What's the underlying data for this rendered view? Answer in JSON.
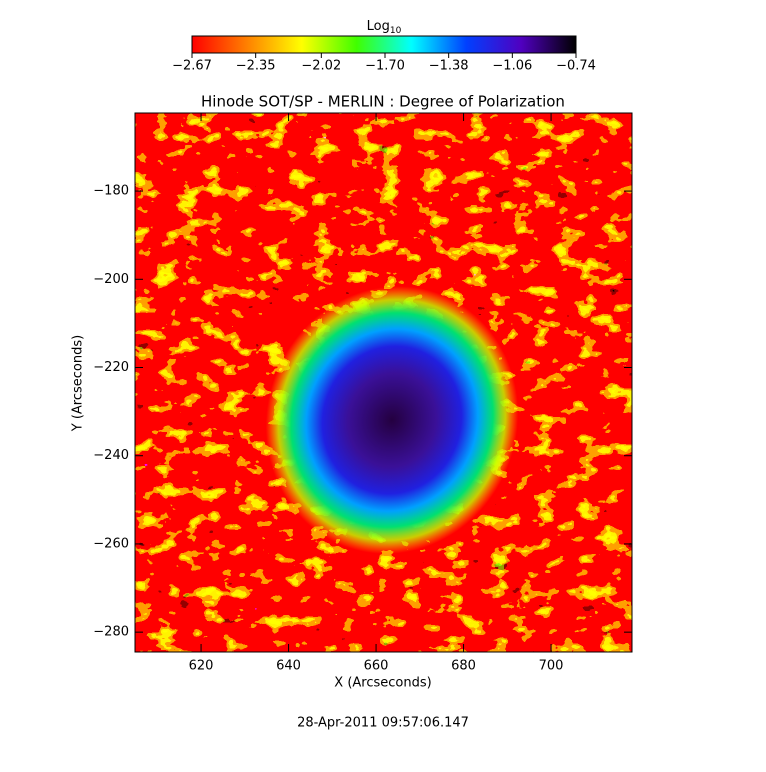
{
  "chart_data": {
    "type": "image",
    "title": "Hinode SOT/SP - MERLIN : Degree of Polarization",
    "x_label": "X (Arcseconds)",
    "y_label": "Y (Arcseconds)",
    "xlim": [
      604.9,
      718.5
    ],
    "xticks": [
      620,
      640,
      660,
      680,
      700
    ],
    "ylim": [
      -284.5,
      -162.3
    ],
    "yticks": [
      -180,
      -200,
      -220,
      -240,
      -260,
      -280
    ],
    "colorbar": {
      "label": "Log",
      "label_subscript": "10",
      "lim": [
        -2.67,
        -0.74
      ],
      "ticks": [
        -2.67,
        -2.35,
        -2.02,
        {
          "value": -1.7,
          "label": "-1.70"
        },
        -1.38,
        -1.06,
        -0.74
      ],
      "colors": [
        "#ff0000",
        "#ff8000",
        "#ffff00",
        "#40ff00",
        "#00ffff",
        "#0040ff",
        "#5000c0",
        "#000000"
      ]
    },
    "timestamp": "28-Apr-2011 09:57:06.147"
  }
}
